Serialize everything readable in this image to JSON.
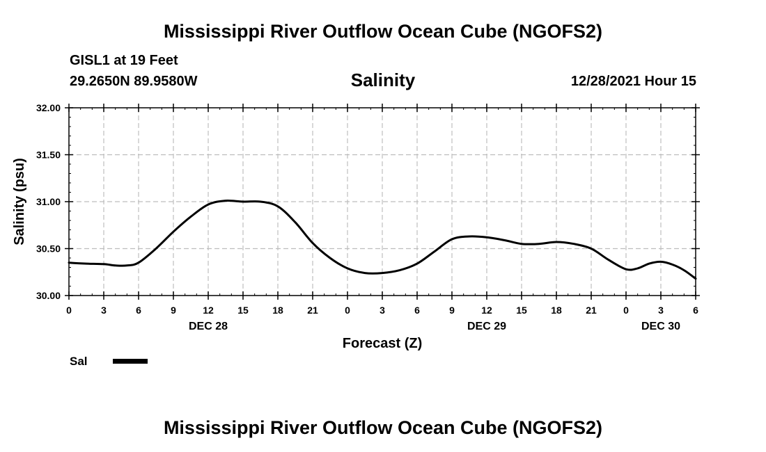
{
  "page": {
    "title_top": "Mississippi River Outflow Ocean Cube (NGOFS2)",
    "title_bottom": "Mississippi River Outflow Ocean Cube (NGOFS2)",
    "station": "GISL1 at 19 Feet",
    "coords": "29.2650N  89.9580W",
    "variable": "Salinity",
    "timestamp": "12/28/2021 Hour 15"
  },
  "chart_data": {
    "type": "line",
    "title": "Salinity",
    "xlabel": "Forecast (Z)",
    "ylabel": "Salinity (psu)",
    "xlim": [
      0,
      54
    ],
    "ylim": [
      30.0,
      32.0
    ],
    "grid": true,
    "yticks": [
      "30.00",
      "30.50",
      "31.00",
      "31.50",
      "32.00"
    ],
    "xticks": [
      "0",
      "3",
      "6",
      "9",
      "12",
      "15",
      "18",
      "21",
      "0",
      "3",
      "6",
      "9",
      "12",
      "15",
      "18",
      "21",
      "0",
      "3",
      "6"
    ],
    "day_labels": [
      {
        "hour": 12,
        "label": "DEC 28"
      },
      {
        "hour": 36,
        "label": "DEC 29"
      },
      {
        "hour": 51,
        "label": "DEC 30"
      }
    ],
    "series": [
      {
        "name": "Sal",
        "color": "#000000",
        "x": [
          0,
          1.5,
          3,
          4,
          5,
          6,
          7.5,
          9,
          10.5,
          12,
          13.5,
          15,
          16.5,
          18,
          19.5,
          21,
          22.5,
          24,
          25.5,
          27,
          28.5,
          30,
          31.5,
          33,
          34.5,
          36,
          37.5,
          39,
          40.5,
          42,
          43.5,
          45,
          46.5,
          48,
          49,
          50,
          51,
          52,
          53,
          54
        ],
        "values": [
          30.35,
          30.34,
          30.335,
          30.32,
          30.32,
          30.35,
          30.5,
          30.68,
          30.84,
          30.97,
          31.01,
          31.0,
          31.0,
          30.95,
          30.78,
          30.56,
          30.4,
          30.29,
          30.24,
          30.24,
          30.27,
          30.34,
          30.47,
          30.6,
          30.63,
          30.62,
          30.59,
          30.55,
          30.55,
          30.57,
          30.55,
          30.5,
          30.38,
          30.28,
          30.29,
          30.34,
          30.36,
          30.33,
          30.27,
          30.18
        ]
      }
    ]
  }
}
